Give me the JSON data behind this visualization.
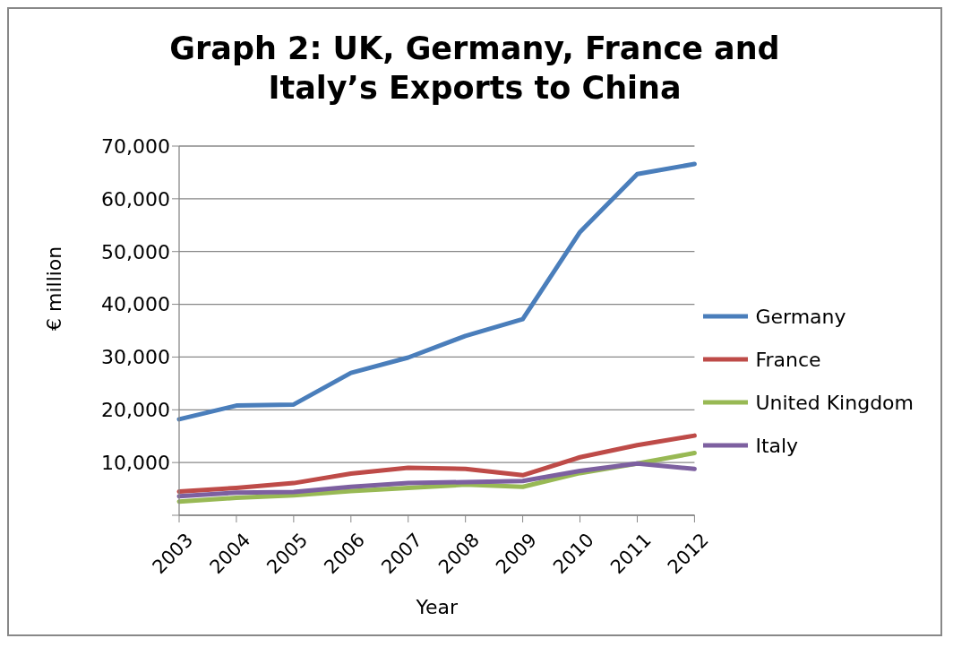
{
  "chart_data": {
    "type": "line",
    "title": "Graph 2: UK, Germany, France and Italy’s Exports to China",
    "xlabel": "Year",
    "ylabel": "€ million",
    "categories": [
      "2003",
      "2004",
      "2005",
      "2006",
      "2007",
      "2008",
      "2009",
      "2010",
      "2011",
      "2012"
    ],
    "series": [
      {
        "name": "Germany",
        "color": "#4a7ebb",
        "values": [
          18200,
          20800,
          21000,
          27000,
          29900,
          34000,
          37200,
          53700,
          64700,
          66600
        ]
      },
      {
        "name": "France",
        "color": "#be4b48",
        "values": [
          4500,
          5200,
          6100,
          7900,
          9000,
          8800,
          7600,
          11000,
          13300,
          15100
        ]
      },
      {
        "name": "United Kingdom",
        "color": "#98b954",
        "values": [
          2600,
          3300,
          3800,
          4600,
          5200,
          5800,
          5400,
          8000,
          9800,
          11800
        ]
      },
      {
        "name": "Italy",
        "color": "#7d60a0",
        "values": [
          3600,
          4300,
          4400,
          5400,
          6100,
          6300,
          6500,
          8400,
          9800,
          8800
        ]
      }
    ],
    "ylim": [
      0,
      70000
    ],
    "yticks": [
      {
        "value": 0,
        "label": null
      },
      {
        "value": 10000,
        "label": "10,000"
      },
      {
        "value": 20000,
        "label": "20,000"
      },
      {
        "value": 30000,
        "label": "30,000"
      },
      {
        "value": 40000,
        "label": "40,000"
      },
      {
        "value": 50000,
        "label": "50,000"
      },
      {
        "value": 60000,
        "label": "60,000"
      },
      {
        "value": 70000,
        "label": "70,000"
      }
    ],
    "grid": "y",
    "legend": "right",
    "marker": "none",
    "line_style": "solid"
  }
}
